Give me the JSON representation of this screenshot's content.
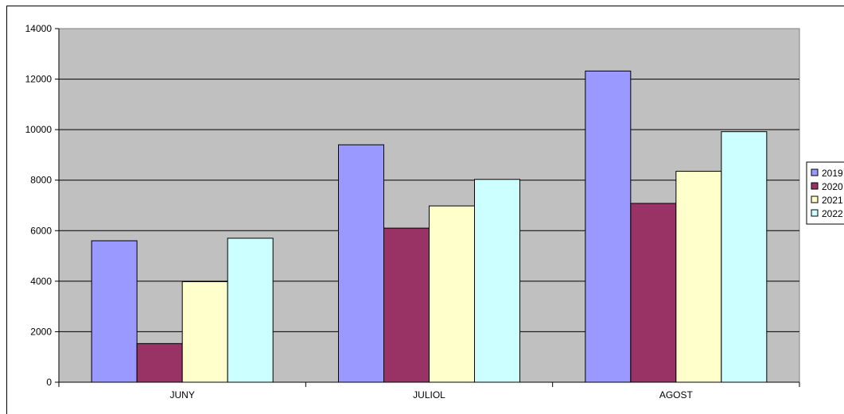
{
  "chart_data": {
    "type": "bar",
    "title": "",
    "xlabel": "",
    "ylabel": "",
    "categories": [
      "JUNY",
      "JULIOL",
      "AGOST"
    ],
    "series": [
      {
        "name": "2019",
        "color": "#9999ff",
        "values": [
          5600,
          9400,
          12320
        ]
      },
      {
        "name": "2020",
        "color": "#993366",
        "values": [
          1530,
          6100,
          7080
        ]
      },
      {
        "name": "2021",
        "color": "#ffffcc",
        "values": [
          3980,
          6980,
          8350
        ]
      },
      {
        "name": "2022",
        "color": "#ccffff",
        "values": [
          5700,
          8030,
          9920
        ]
      }
    ],
    "ylim": [
      0,
      14000
    ],
    "yticks": [
      "0",
      "2000",
      "4000",
      "6000",
      "8000",
      "10000",
      "12000",
      "14000"
    ],
    "grid": true,
    "legend_position": "right",
    "plot_background": "#c0c0c0"
  }
}
